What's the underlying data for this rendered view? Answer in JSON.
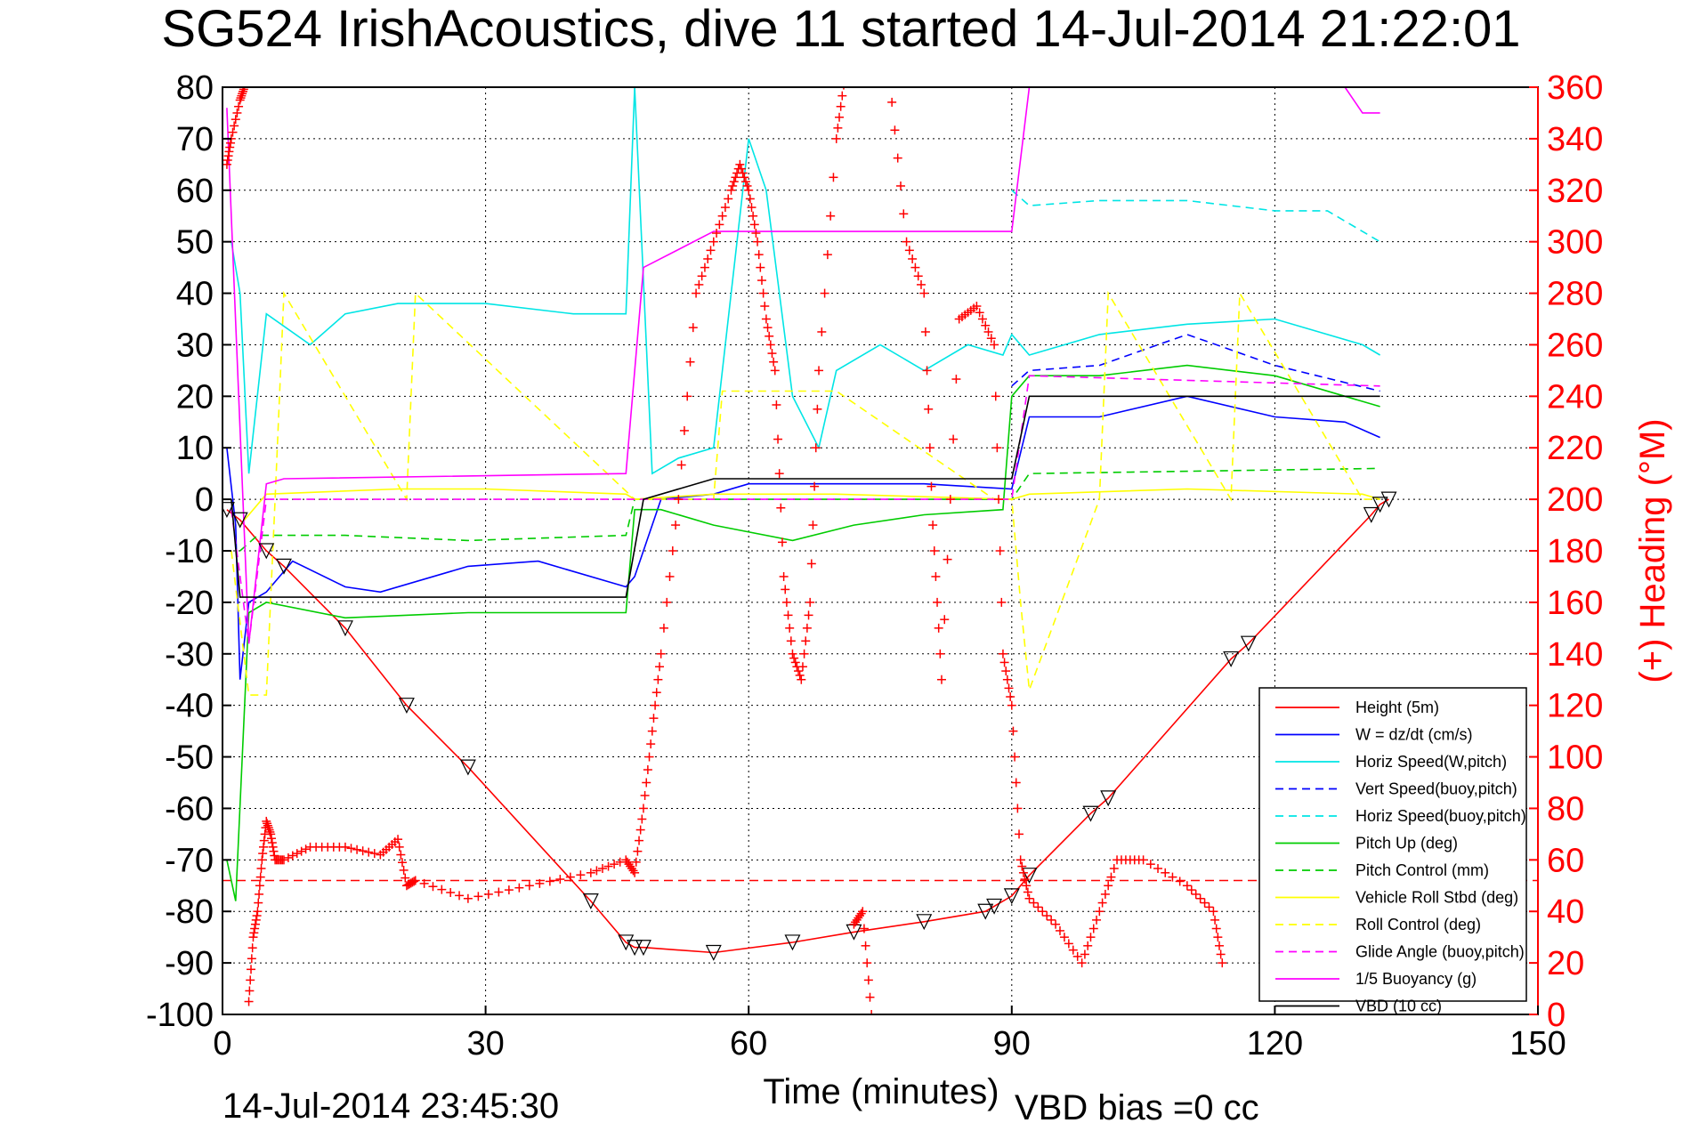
{
  "chart_data": {
    "type": "line",
    "title": "SG524 IrishAcoustics, dive 11 started 14-Jul-2014 21:22:01",
    "xlabel": "Time (minutes)",
    "ylabel": "",
    "y2label": "(+) Heading (°M)",
    "xlim": [
      0,
      150
    ],
    "ylim": [
      -100,
      80
    ],
    "y2lim": [
      0,
      360
    ],
    "x_ticks": [
      "0",
      "30",
      "60",
      "90",
      "120",
      "150"
    ],
    "y_ticks": [
      "80",
      "70",
      "60",
      "50",
      "40",
      "30",
      "20",
      "10",
      "0",
      "-10",
      "-20",
      "-30",
      "-40",
      "-50",
      "-60",
      "-70",
      "-80",
      "-90",
      "-100"
    ],
    "y2_ticks": [
      "360",
      "340",
      "320",
      "300",
      "280",
      "260",
      "240",
      "220",
      "200",
      "180",
      "160",
      "140",
      "120",
      "100",
      "80",
      "60",
      "40",
      "20",
      "0"
    ],
    "grid": true,
    "legend_position": "bottom-right",
    "timestamp": "14-Jul-2014 23:45:30",
    "vbd_bias": "VBD bias =0 cc",
    "series": [
      {
        "name": "Height (5m)",
        "color": "#ff0000",
        "style": "solid",
        "x": [
          0.5,
          2,
          5,
          7,
          14,
          21,
          28,
          42,
          46,
          47,
          48,
          56,
          65,
          72,
          80,
          87,
          88,
          90,
          92,
          99,
          101,
          115,
          117,
          131,
          132,
          133
        ],
        "y": [
          -2,
          -4,
          -10,
          -13,
          -25,
          -40,
          -52,
          -78,
          -86,
          -87,
          -87,
          -88,
          -86,
          -84,
          -82,
          -80,
          -79,
          -77,
          -73,
          -61,
          -58,
          -31,
          -28,
          -3,
          -1,
          0
        ]
      },
      {
        "name": "W = dz/dt (cm/s)",
        "color": "#0000ff",
        "style": "solid",
        "x": [
          0.5,
          1.5,
          2,
          3,
          5,
          8,
          14,
          18,
          28,
          36,
          46,
          47,
          50,
          56,
          60,
          70,
          80,
          90,
          92,
          100,
          110,
          120,
          128,
          132
        ],
        "y": [
          10,
          -5,
          -35,
          -20,
          -18,
          -12,
          -17,
          -18,
          -13,
          -12,
          -17,
          -15,
          0,
          1,
          3,
          3,
          3,
          2,
          16,
          16,
          20,
          16,
          15,
          12
        ]
      },
      {
        "name": "Horiz Speed(W,pitch)",
        "color": "#00e5e5",
        "style": "solid",
        "x": [
          1,
          2,
          3,
          5,
          10,
          14,
          20,
          30,
          40,
          46,
          47,
          49,
          52,
          56,
          58,
          60,
          62,
          65,
          68,
          70,
          75,
          80,
          85,
          89,
          90,
          92,
          100,
          110,
          120,
          130,
          132
        ],
        "y": [
          50,
          40,
          5,
          36,
          30,
          36,
          38,
          38,
          36,
          36,
          80,
          5,
          8,
          10,
          40,
          70,
          60,
          20,
          10,
          25,
          30,
          25,
          30,
          28,
          32,
          28,
          32,
          34,
          35,
          30,
          28
        ]
      },
      {
        "name": "Vert Speed(buoy,pitch)",
        "color": "#0000ff",
        "style": "dashed",
        "x": [
          90,
          92,
          100,
          110,
          120,
          132
        ],
        "y": [
          22,
          25,
          26,
          32,
          26,
          21
        ]
      },
      {
        "name": "Horiz Speed(buoy,pitch)",
        "color": "#00e5e5",
        "style": "dashed",
        "x": [
          90,
          92,
          100,
          110,
          120,
          126,
          132
        ],
        "y": [
          60,
          57,
          58,
          58,
          56,
          56,
          50
        ]
      },
      {
        "name": "Pitch Up (deg)",
        "color": "#00cc00",
        "style": "solid",
        "x": [
          0.5,
          1.5,
          3,
          5,
          14,
          28,
          46,
          47,
          50,
          56,
          65,
          72,
          80,
          89,
          90,
          92,
          100,
          110,
          120,
          132
        ],
        "y": [
          -70,
          -78,
          -22,
          -20,
          -23,
          -22,
          -22,
          -2,
          -2,
          -5,
          -8,
          -5,
          -3,
          -2,
          20,
          24,
          24,
          26,
          24,
          18
        ]
      },
      {
        "name": "Pitch Control (mm)",
        "color": "#00cc00",
        "style": "dashed",
        "x": [
          2,
          4,
          14,
          28,
          46,
          47,
          56,
          90,
          92,
          132
        ],
        "y": [
          -10,
          -7,
          -7,
          -8,
          -7,
          0,
          0,
          0,
          5,
          6
        ]
      },
      {
        "name": "Vehicle Roll Stbd (deg)",
        "color": "#ffff00",
        "style": "solid",
        "x": [
          2,
          5,
          20,
          30,
          46,
          47,
          56,
          70,
          90,
          92,
          110,
          130,
          132
        ],
        "y": [
          -5,
          1,
          2,
          2,
          1,
          0,
          1,
          1,
          0,
          1,
          2,
          1,
          0
        ]
      },
      {
        "name": "Roll Control (deg)",
        "color": "#ffff00",
        "style": "dashed",
        "x": [
          1,
          3,
          5,
          6,
          7,
          21,
          22,
          47,
          56,
          57,
          70,
          88,
          90,
          91,
          92,
          100,
          101,
          115,
          116,
          130,
          132
        ],
        "y": [
          -10,
          -38,
          -38,
          0,
          40,
          0,
          40,
          0,
          0,
          21,
          21,
          0,
          0,
          -20,
          -37,
          0,
          40,
          0,
          40,
          0,
          0
        ]
      },
      {
        "name": "Glide Angle (buoy,pitch)",
        "color": "#ff00ff",
        "style": "dashed",
        "x": [
          1,
          3,
          5,
          46,
          90,
          92,
          132
        ],
        "y": [
          -2,
          -28,
          0,
          0,
          0,
          24,
          22
        ]
      },
      {
        "name": "1/5 Buoyancy (g)",
        "color": "#ff00ff",
        "style": "solid",
        "x": [
          0.5,
          3,
          5,
          7,
          46,
          48,
          56,
          90,
          92,
          128,
          130,
          132
        ],
        "y": [
          76,
          -28,
          3,
          4,
          5,
          45,
          52,
          52,
          80,
          80,
          75,
          75
        ]
      },
      {
        "name": "VBD (10 cc)",
        "color": "#000000",
        "style": "solid",
        "x": [
          1,
          2,
          46,
          48,
          56,
          90,
          92,
          132
        ],
        "y": [
          0,
          -19,
          -19,
          0,
          4,
          4,
          20,
          20
        ]
      }
    ],
    "heading_series": {
      "name": "(+) Heading (°M)",
      "color": "#ff0000",
      "marker": "+",
      "x": [
        0.5,
        1,
        2,
        2.5,
        3,
        3.5,
        4,
        4.5,
        5,
        5.5,
        6,
        7,
        10,
        14,
        18,
        20,
        21,
        22,
        28,
        35,
        42,
        46,
        47,
        48,
        49,
        50,
        52,
        54,
        56,
        58,
        59,
        60,
        61,
        62,
        63,
        64,
        65,
        66,
        67,
        68,
        70,
        71,
        72,
        73,
        74,
        76,
        78,
        80,
        81,
        82,
        84,
        86,
        88,
        89,
        90,
        91,
        92,
        95,
        98,
        100,
        102,
        105,
        110,
        113,
        114
      ],
      "y": [
        330,
        340,
        355,
        360,
        5,
        30,
        40,
        60,
        75,
        70,
        60,
        60,
        65,
        65,
        62,
        68,
        50,
        52,
        45,
        50,
        55,
        60,
        55,
        80,
        110,
        140,
        200,
        280,
        300,
        320,
        330,
        320,
        300,
        270,
        250,
        170,
        140,
        130,
        160,
        250,
        340,
        365,
        35,
        40,
        0,
        365,
        300,
        280,
        190,
        130,
        270,
        275,
        260,
        140,
        120,
        60,
        45,
        35,
        20,
        40,
        60,
        60,
        50,
        40,
        20
      ]
    },
    "reference_line": {
      "y": -74,
      "color": "#ff0000",
      "style": "dashed"
    }
  }
}
